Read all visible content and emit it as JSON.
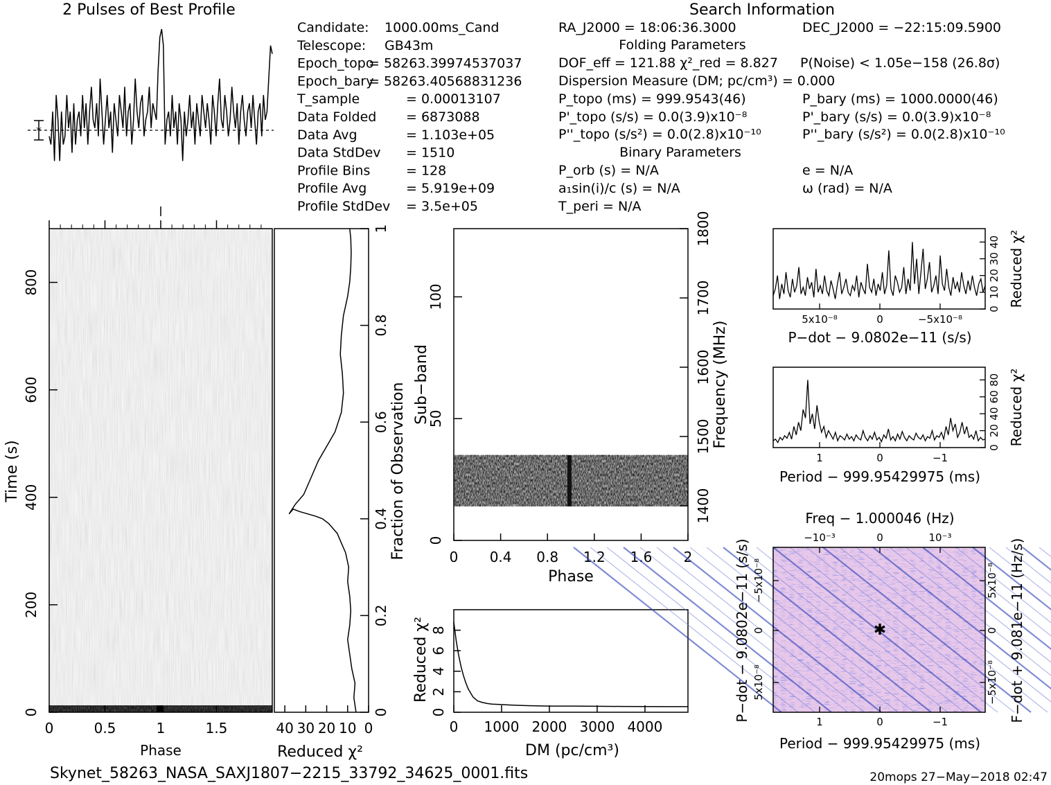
{
  "prof_title": "2 Pulses of Best Profile",
  "search_title": "Search Information",
  "info_left": [
    [
      "Candidate:",
      "1000.00ms_Cand"
    ],
    [
      "Telescope:",
      "GB43m"
    ],
    [
      "Epoch_topo",
      "= 58263.39974537037"
    ],
    [
      "Epoch_bary",
      "= 58263.40568831236"
    ],
    [
      "T_sample",
      "=  0.00013107"
    ],
    [
      "Data Folded",
      "=  6873088"
    ],
    [
      "Data Avg",
      "=  1.103e+05"
    ],
    [
      "Data StdDev",
      "=  1510"
    ],
    [
      "Profile Bins",
      "=  128"
    ],
    [
      "Profile Avg",
      "=  5.919e+09"
    ],
    [
      "Profile StdDev",
      "=  3.5e+05"
    ]
  ],
  "info_mid": {
    "ra": "RA_J2000 = 18:06:36.3000",
    "folding": "Folding Parameters",
    "dof": "DOF_eff = 121.88  χ²_red = 8.827",
    "dm": "Dispersion Measure (DM; pc/cm³) = 0.000",
    "ptopo": "P_topo (ms) =  999.9543(46)",
    "pdtopo": "P'_topo (s/s) = 0.0(3.9)x10⁻⁸",
    "pddtopo": "P''_topo (s/s²) = 0.0(2.8)x10⁻¹⁰",
    "binary": "Binary Parameters",
    "porb": "P_orb (s) = N/A",
    "a1": "a₁sin(i)/c (s) = N/A",
    "tperi": "T_peri = N/A"
  },
  "info_right": {
    "dec": "DEC_J2000 = −22:15:09.5900",
    "noise": "P(Noise) < 1.05e−158   (26.8σ)",
    "pbary": "P_bary (ms) =  1000.0000(46)",
    "pdbary": "P'_bary (s/s) = 0.0(3.9)x10⁻⁸",
    "pddbary": "P''_bary (s/s²) = 0.0(2.8)x10⁻¹⁰",
    "e": "e = N/A",
    "omega": "ω (rad) = N/A"
  },
  "footer_file": "Skynet_58263_NASA_SAXJ1807−2215_33792_34625_0001.fits",
  "footer_stamp": "20mops 27−May−2018 02:47",
  "chart_data": [
    {
      "type": "line",
      "id": "profile",
      "title": "2 Pulses of Best Profile",
      "x_range": [
        0,
        2
      ],
      "series": [
        {
          "values": [
            0.35,
            0.3,
            0.5,
            0.2,
            0.6,
            0.45,
            0.2,
            0.5,
            0.3,
            0.35,
            0.6,
            0.4,
            0.5,
            0.25,
            0.55,
            0.3,
            0.45,
            0.5,
            0.35,
            0.6,
            0.4,
            0.55,
            0.3,
            0.5,
            0.65,
            0.45,
            0.4,
            0.55,
            0.35,
            0.7,
            0.5,
            0.3,
            0.45,
            0.6,
            0.4,
            0.5,
            0.25,
            0.55,
            0.45,
            0.35,
            0.6,
            0.5,
            0.4,
            0.65,
            0.35,
            0.5,
            0.55,
            0.3,
            0.45,
            0.7,
            0.5,
            0.4,
            0.55,
            0.6,
            0.35,
            0.45,
            0.5,
            0.65,
            0.4,
            0.55,
            0.5,
            0.45,
            0.75,
            0.95,
            1.0,
            0.9,
            0.3,
            0.45,
            0.5,
            0.35,
            0.6,
            0.4,
            0.5,
            0.3,
            0.55,
            0.45,
            0.2,
            0.5,
            0.35,
            0.45,
            0.6,
            0.4,
            0.5,
            0.3,
            0.55,
            0.45,
            0.35,
            0.6,
            0.5,
            0.4,
            0.55,
            0.45,
            0.3,
            0.6,
            0.5,
            0.35,
            0.55,
            0.7,
            0.45,
            0.4,
            0.6,
            0.5,
            0.35,
            0.45,
            0.65,
            0.5,
            0.4,
            0.55,
            0.3,
            0.5,
            0.6,
            0.45,
            0.35,
            0.5,
            0.55,
            0.4,
            0.6,
            0.45,
            0.3,
            0.5,
            0.55,
            0.35,
            0.6,
            0.45,
            0.5,
            0.7,
            0.9,
            0.85
          ]
        }
      ]
    },
    {
      "type": "heatmap",
      "id": "time_phase",
      "xlabel": "Phase",
      "ylabel": "Time (s)",
      "xlim": [
        0,
        2
      ],
      "ylim": [
        0,
        900
      ],
      "x_ticks": [
        0,
        0.5,
        1,
        1.5
      ],
      "y_ticks": [
        0,
        200,
        400,
        600,
        800
      ]
    },
    {
      "type": "line",
      "id": "time_chi2",
      "xlabel": "Reduced χ²",
      "ylabel": "Fraction of Observation",
      "x_ticks": [
        40,
        30,
        20,
        10,
        0
      ],
      "y_ticks": [
        0,
        0.2,
        0.4,
        0.6,
        0.8,
        1
      ],
      "xlim": [
        45,
        0
      ],
      "ylim": [
        0,
        1
      ],
      "x": [
        6,
        7,
        6.5,
        8,
        9,
        10,
        9,
        8.5,
        9,
        10,
        9.5,
        11,
        13,
        15,
        17,
        19,
        22,
        25,
        29,
        33,
        36,
        38,
        35,
        31,
        28,
        24,
        20,
        16,
        13,
        12,
        12.5,
        13.5,
        13,
        12,
        10,
        9,
        8.5,
        8.3,
        8.5,
        9
      ],
      "y": [
        0,
        0.03,
        0.06,
        0.09,
        0.12,
        0.15,
        0.18,
        0.21,
        0.24,
        0.27,
        0.3,
        0.33,
        0.35,
        0.37,
        0.38,
        0.39,
        0.4,
        0.405,
        0.41,
        0.415,
        0.42,
        0.41,
        0.43,
        0.45,
        0.48,
        0.52,
        0.55,
        0.58,
        0.62,
        0.66,
        0.7,
        0.74,
        0.78,
        0.82,
        0.86,
        0.89,
        0.92,
        0.95,
        0.98,
        1.0
      ]
    },
    {
      "type": "heatmap",
      "id": "subband_phase",
      "xlabel": "Phase",
      "ylabel": "Sub−band",
      "y2label": "Frequency (MHz)",
      "xlim": [
        0,
        2
      ],
      "ylim": [
        0,
        128
      ],
      "x_ticks": [
        0,
        0.4,
        0.8,
        1.2,
        1.6,
        2
      ],
      "y_ticks": [
        0,
        50,
        100
      ],
      "y2_ticks": [
        1400,
        1500,
        1600,
        1700,
        1800
      ],
      "band_rows": [
        14,
        35
      ]
    },
    {
      "type": "line",
      "id": "dm_chi2",
      "xlabel": "DM (pc/cm³)",
      "ylabel": "Reduced χ²",
      "xlim": [
        0,
        4900
      ],
      "ylim": [
        0,
        10
      ],
      "x_ticks": [
        0,
        1000,
        2000,
        3000,
        4000
      ],
      "y_ticks": [
        0,
        2,
        4,
        6,
        8
      ],
      "x": [
        0,
        50,
        100,
        150,
        200,
        250,
        300,
        350,
        400,
        450,
        500,
        600,
        700,
        800,
        1000,
        1200,
        1500,
        2000,
        2500,
        3000,
        3500,
        4000,
        4500,
        4900
      ],
      "y": [
        8.8,
        7.0,
        5.6,
        4.5,
        3.6,
        2.9,
        2.3,
        1.9,
        1.5,
        1.3,
        1.1,
        0.95,
        0.85,
        0.8,
        0.75,
        0.7,
        0.65,
        0.6,
        0.6,
        0.58,
        0.57,
        0.56,
        0.55,
        0.55
      ]
    },
    {
      "type": "line",
      "id": "pdot_chi2",
      "xlabel": "P−dot − 9.0802e−11 (s/s)",
      "ylabel": "Reduced χ²",
      "x_ticks": [
        "5x10⁻⁸",
        "0",
        "−5x10⁻⁸"
      ],
      "y_ticks": [
        0,
        10,
        20,
        30,
        40
      ],
      "ylim": [
        0,
        48
      ],
      "values": [
        8,
        12,
        20,
        6,
        15,
        9,
        22,
        11,
        7,
        18,
        10,
        14,
        25,
        9,
        13,
        8,
        19,
        12,
        16,
        7,
        24,
        10,
        14,
        9,
        20,
        11,
        8,
        17,
        12,
        6,
        15,
        22,
        9,
        13,
        18,
        10,
        8,
        14,
        11,
        20,
        7,
        16,
        12,
        9,
        27,
        13,
        10,
        18,
        8,
        15,
        11,
        22,
        9,
        14,
        35,
        12,
        8,
        20,
        16,
        10,
        13,
        25,
        9,
        18,
        11,
        40,
        15,
        30,
        9,
        22,
        36,
        12,
        18,
        28,
        10,
        14,
        20,
        9,
        32,
        15,
        11,
        24,
        13,
        8,
        19,
        12,
        16,
        10,
        22,
        14,
        9,
        17,
        11,
        20,
        13,
        8,
        15,
        18,
        10,
        14
      ]
    },
    {
      "type": "line",
      "id": "period_chi2",
      "xlabel": "Period − 999.95429975 (ms)",
      "ylabel": "Reduced χ²",
      "x_ticks": [
        "1",
        "0",
        "−1"
      ],
      "y_ticks": [
        0,
        20,
        40,
        60,
        80
      ],
      "ylim": [
        0,
        95
      ],
      "values": [
        8,
        10,
        6,
        12,
        9,
        14,
        11,
        18,
        10,
        25,
        15,
        30,
        20,
        45,
        35,
        80,
        28,
        40,
        22,
        50,
        30,
        18,
        25,
        12,
        20,
        15,
        10,
        18,
        8,
        14,
        12,
        9,
        16,
        10,
        13,
        8,
        15,
        11,
        9,
        20,
        12,
        8,
        14,
        10,
        18,
        9,
        12,
        7,
        15,
        11,
        22,
        9,
        13,
        8,
        16,
        10,
        19,
        12,
        8,
        14,
        11,
        9,
        17,
        12,
        10,
        15,
        8,
        13,
        11,
        20,
        9,
        14,
        12,
        18,
        10,
        25,
        15,
        35,
        20,
        28,
        12,
        18,
        30,
        16,
        25,
        12,
        15,
        10,
        20,
        8,
        12,
        9,
        10
      ]
    },
    {
      "type": "heatmap",
      "id": "period_pdot",
      "xlabel": "Period − 999.95429975 (ms)",
      "ylabel": "P−dot − 9.0802e−11 (s/s)",
      "x2label": "Freq − 1.000046 (Hz)",
      "y2label": "F−dot + 9.081e−11 (Hz/s)",
      "x_ticks": [
        "1",
        "0",
        "−1"
      ],
      "x2_ticks": [
        "−10⁻³",
        "0",
        "10⁻³"
      ],
      "y_ticks": [
        "5x10⁻⁸",
        "0",
        "−5x10⁻⁸"
      ],
      "y2_ticks": [
        "−5x10⁻⁸",
        "0",
        "5x10⁻⁸"
      ]
    }
  ]
}
